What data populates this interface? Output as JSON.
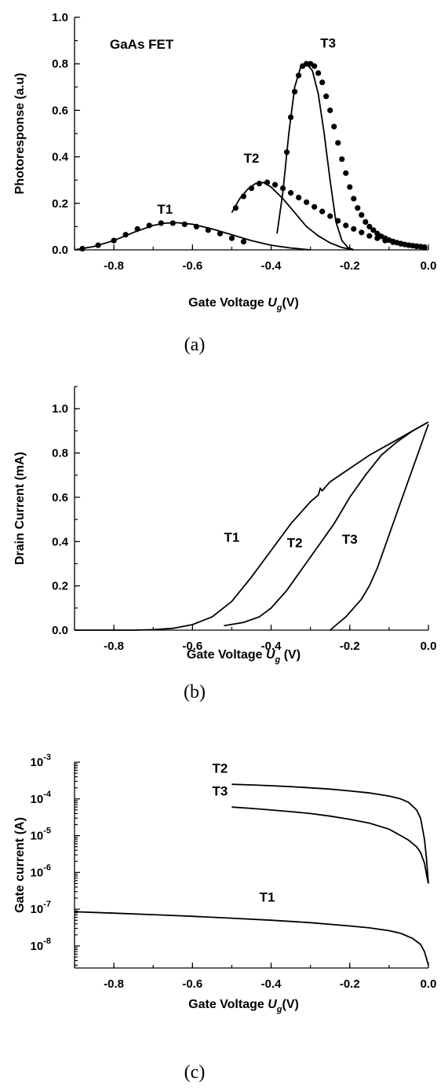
{
  "chart_data": [
    {
      "type": "line",
      "panel": "(a)",
      "annotation": "GaAs FET",
      "xlabel": "Gate  Voltage",
      "xlabel_sym": "U",
      "xlabel_sub": "g",
      "xlabel_unit": "(V)",
      "ylabel": "Photoresponse (a.u)",
      "xlim": [
        -0.9,
        0.0
      ],
      "ylim": [
        0.0,
        1.0
      ],
      "xticks": [
        "-0.8",
        "-0.6",
        "-0.4",
        "-0.2",
        "0.0"
      ],
      "yticks": [
        "0.0",
        "0.2",
        "0.4",
        "0.6",
        "0.8",
        "1.0"
      ],
      "series": [
        {
          "name": "T1",
          "style": "line",
          "x": [
            -0.9,
            -0.85,
            -0.8,
            -0.75,
            -0.7,
            -0.67,
            -0.64,
            -0.6,
            -0.55,
            -0.5,
            -0.45,
            -0.4,
            -0.35,
            -0.3
          ],
          "y": [
            0.0,
            0.015,
            0.04,
            0.075,
            0.105,
            0.115,
            0.117,
            0.11,
            0.09,
            0.065,
            0.04,
            0.02,
            0.008,
            0.0
          ]
        },
        {
          "name": "T1 data",
          "style": "dots",
          "x": [
            -0.88,
            -0.84,
            -0.8,
            -0.77,
            -0.74,
            -0.71,
            -0.68,
            -0.65,
            -0.62,
            -0.59,
            -0.56,
            -0.53,
            -0.5,
            -0.47
          ],
          "y": [
            0.005,
            0.02,
            0.04,
            0.065,
            0.09,
            0.105,
            0.115,
            0.115,
            0.11,
            0.1,
            0.085,
            0.07,
            0.05,
            0.035
          ]
        },
        {
          "name": "T2",
          "style": "line",
          "x": [
            -0.5,
            -0.48,
            -0.46,
            -0.44,
            -0.42,
            -0.4,
            -0.37,
            -0.34,
            -0.31,
            -0.28,
            -0.25,
            -0.22,
            -0.19
          ],
          "y": [
            0.16,
            0.22,
            0.26,
            0.285,
            0.29,
            0.27,
            0.22,
            0.16,
            0.1,
            0.06,
            0.03,
            0.01,
            0.0
          ]
        },
        {
          "name": "T2 data",
          "style": "dots",
          "x": [
            -0.49,
            -0.47,
            -0.45,
            -0.43,
            -0.41,
            -0.39,
            -0.37,
            -0.35,
            -0.33,
            -0.31,
            -0.29,
            -0.27,
            -0.25,
            -0.23,
            -0.21,
            -0.19,
            -0.17,
            -0.15,
            -0.13,
            -0.11,
            -0.09,
            -0.07,
            -0.05,
            -0.03,
            -0.01
          ],
          "y": [
            0.18,
            0.23,
            0.265,
            0.285,
            0.29,
            0.28,
            0.265,
            0.245,
            0.225,
            0.205,
            0.185,
            0.165,
            0.145,
            0.125,
            0.105,
            0.09,
            0.075,
            0.06,
            0.05,
            0.04,
            0.033,
            0.026,
            0.02,
            0.015,
            0.01
          ]
        },
        {
          "name": "T3",
          "style": "line",
          "x": [
            -0.385,
            -0.37,
            -0.355,
            -0.34,
            -0.325,
            -0.31,
            -0.295,
            -0.28,
            -0.265,
            -0.25,
            -0.235,
            -0.22,
            -0.205,
            -0.19
          ],
          "y": [
            0.07,
            0.25,
            0.5,
            0.7,
            0.785,
            0.8,
            0.77,
            0.67,
            0.5,
            0.3,
            0.12,
            0.04,
            0.01,
            0.0
          ]
        },
        {
          "name": "T3 data",
          "style": "dots",
          "x": [
            -0.36,
            -0.35,
            -0.34,
            -0.33,
            -0.32,
            -0.31,
            -0.3,
            -0.29,
            -0.28,
            -0.27,
            -0.26,
            -0.25,
            -0.24,
            -0.23,
            -0.22,
            -0.21,
            -0.2,
            -0.19,
            -0.18,
            -0.17,
            -0.16,
            -0.15,
            -0.14,
            -0.13,
            -0.12,
            -0.11,
            -0.1,
            -0.09,
            -0.08,
            -0.07,
            -0.06,
            -0.05,
            -0.04,
            -0.03,
            -0.02,
            -0.01
          ],
          "y": [
            0.42,
            0.57,
            0.68,
            0.75,
            0.79,
            0.8,
            0.8,
            0.79,
            0.76,
            0.72,
            0.66,
            0.6,
            0.53,
            0.46,
            0.39,
            0.33,
            0.27,
            0.22,
            0.18,
            0.15,
            0.12,
            0.1,
            0.085,
            0.07,
            0.058,
            0.05,
            0.042,
            0.036,
            0.031,
            0.027,
            0.023,
            0.02,
            0.018,
            0.016,
            0.014,
            0.012
          ]
        }
      ],
      "labels": [
        {
          "text": "T1",
          "x": -0.67,
          "y": 0.155
        },
        {
          "text": "T2",
          "x": -0.45,
          "y": 0.375
        },
        {
          "text": "T3",
          "x": -0.255,
          "y": 0.87
        }
      ]
    },
    {
      "type": "line",
      "panel": "(b)",
      "xlabel": "Gate Voltage",
      "xlabel_sym": "U",
      "xlabel_sub": "g",
      "xlabel_unit": " (V)",
      "ylabel": "Drain Current (mA)",
      "xlim": [
        -0.9,
        0.0
      ],
      "ylim": [
        0.0,
        1.1
      ],
      "xticks": [
        "-0.8",
        "-0.6",
        "-0.4",
        "-0.2",
        "0.0"
      ],
      "yticks": [
        "0.0",
        "0.2",
        "0.4",
        "0.6",
        "0.8",
        "1.0"
      ],
      "series": [
        {
          "name": "T1",
          "x": [
            -0.9,
            -0.75,
            -0.7,
            -0.65,
            -0.6,
            -0.55,
            -0.5,
            -0.45,
            -0.4,
            -0.35,
            -0.3,
            -0.28,
            -0.275,
            -0.27,
            -0.25,
            -0.2,
            -0.15,
            -0.1,
            -0.05,
            0.0
          ],
          "y": [
            0.0,
            0.0,
            0.002,
            0.008,
            0.025,
            0.06,
            0.13,
            0.24,
            0.36,
            0.48,
            0.58,
            0.61,
            0.64,
            0.63,
            0.67,
            0.73,
            0.79,
            0.84,
            0.89,
            0.94
          ]
        },
        {
          "name": "T2",
          "x": [
            -0.52,
            -0.47,
            -0.43,
            -0.4,
            -0.36,
            -0.32,
            -0.28,
            -0.24,
            -0.2,
            -0.16,
            -0.12,
            -0.08,
            -0.04,
            0.0
          ],
          "y": [
            0.02,
            0.035,
            0.06,
            0.1,
            0.18,
            0.28,
            0.38,
            0.48,
            0.6,
            0.7,
            0.79,
            0.85,
            0.9,
            0.94
          ]
        },
        {
          "name": "T3",
          "x": [
            -0.25,
            -0.23,
            -0.21,
            -0.19,
            -0.17,
            -0.15,
            -0.13,
            -0.11,
            -0.09,
            -0.07,
            -0.05,
            -0.03,
            -0.01,
            0.0
          ],
          "y": [
            0.0,
            0.03,
            0.06,
            0.1,
            0.14,
            0.2,
            0.28,
            0.38,
            0.48,
            0.58,
            0.68,
            0.78,
            0.88,
            0.93
          ]
        }
      ],
      "labels": [
        {
          "text": "T1",
          "x": -0.5,
          "y": 0.4
        },
        {
          "text": "T2",
          "x": -0.34,
          "y": 0.375
        },
        {
          "text": "T3",
          "x": -0.2,
          "y": 0.39
        }
      ]
    },
    {
      "type": "line",
      "panel": "(c)",
      "xlabel": "Gate Voltage",
      "xlabel_sym": "U",
      "xlabel_sub": "g",
      "xlabel_unit": "(V)",
      "ylabel": "Gate current (A)",
      "yscale": "log",
      "xlim": [
        -0.9,
        0.0
      ],
      "ylim_exp": [
        -8.6,
        -3.0
      ],
      "xticks": [
        "-0.8",
        "-0.6",
        "-0.4",
        "-0.2",
        "0.0"
      ],
      "yticks_exp": [
        "-8",
        "-7",
        "-6",
        "-5",
        "-4",
        "-3"
      ],
      "ytick_base": "10",
      "series": [
        {
          "name": "T2",
          "x": [
            -0.5,
            -0.45,
            -0.4,
            -0.35,
            -0.3,
            -0.25,
            -0.2,
            -0.15,
            -0.1,
            -0.07,
            -0.05,
            -0.03,
            -0.02,
            -0.01,
            -0.005,
            0.0
          ],
          "y": [
            0.00025,
            0.00024,
            0.000228,
            0.000215,
            0.0002,
            0.000185,
            0.000165,
            0.000145,
            0.00012,
            0.0001,
            8e-05,
            5e-05,
            3e-05,
            8e-06,
            2.5e-06,
            5e-07
          ]
        },
        {
          "name": "T3",
          "x": [
            -0.5,
            -0.45,
            -0.4,
            -0.35,
            -0.3,
            -0.25,
            -0.2,
            -0.15,
            -0.1,
            -0.07,
            -0.05,
            -0.03,
            -0.02,
            -0.01,
            -0.005,
            0.0
          ],
          "y": [
            6e-05,
            5.5e-05,
            5e-05,
            4.5e-05,
            4e-05,
            3.4e-05,
            2.8e-05,
            2.2e-05,
            1.5e-05,
            1e-05,
            7.5e-06,
            5e-06,
            3.5e-06,
            1.8e-06,
            9e-07,
            5e-07
          ]
        },
        {
          "name": "T1",
          "x": [
            -0.9,
            -0.8,
            -0.7,
            -0.6,
            -0.5,
            -0.4,
            -0.3,
            -0.2,
            -0.15,
            -0.1,
            -0.07,
            -0.04,
            -0.02,
            -0.01,
            0.0
          ],
          "y": [
            8.5e-08,
            7.8e-08,
            7.1e-08,
            6.4e-08,
            5.7e-08,
            5e-08,
            4.3e-08,
            3.5e-08,
            3.1e-08,
            2.6e-08,
            2.2e-08,
            1.6e-08,
            1.1e-08,
            7e-09,
            3e-09
          ]
        }
      ],
      "labels": [
        {
          "text": "T2",
          "x": -0.53,
          "y": 0.00052
        },
        {
          "text": "T3",
          "x": -0.53,
          "y": 0.000125
        },
        {
          "text": "T1",
          "x": -0.41,
          "y": 1.6e-07
        }
      ]
    }
  ]
}
